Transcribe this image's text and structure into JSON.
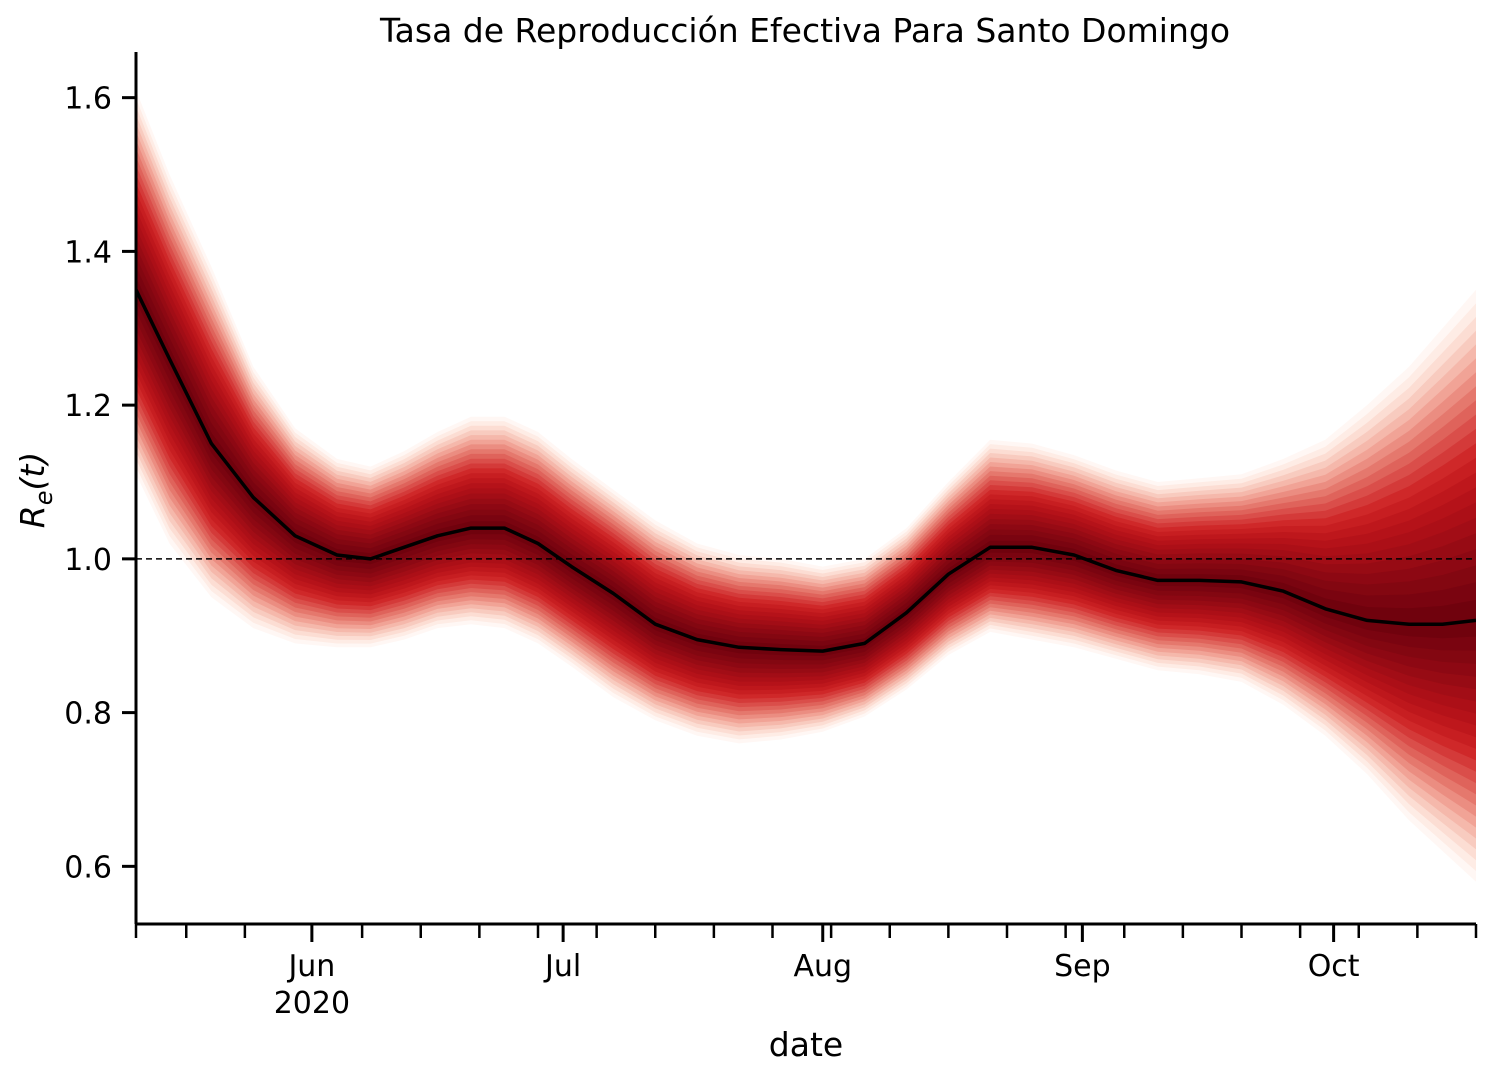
{
  "chart_data": {
    "type": "line",
    "title": "Tasa de Reproducción Efectiva Para Santo Domingo",
    "xlabel": "date",
    "ylabel_base": "R",
    "ylabel_sub": "e",
    "ylabel_arg": "(t)",
    "x_range": [
      "2020-05-11",
      "2020-10-18"
    ],
    "ylim": [
      0.525,
      1.675
    ],
    "yticks": [
      {
        "value": 0.6,
        "label": "0.6"
      },
      {
        "value": 0.8,
        "label": "0.8"
      },
      {
        "value": 1.0,
        "label": "1.0"
      },
      {
        "value": 1.2,
        "label": "1.2"
      },
      {
        "value": 1.4,
        "label": "1.4"
      },
      {
        "value": 1.6,
        "label": "1.6"
      }
    ],
    "xticks_major": [
      {
        "date": "2020-06-01",
        "label": "Jun",
        "sublabel": "2020"
      },
      {
        "date": "2020-07-01",
        "label": "Jul",
        "sublabel": ""
      },
      {
        "date": "2020-08-01",
        "label": "Aug",
        "sublabel": ""
      },
      {
        "date": "2020-09-01",
        "label": "Sep",
        "sublabel": ""
      },
      {
        "date": "2020-10-01",
        "label": "Oct",
        "sublabel": ""
      }
    ],
    "xticks_minor": [
      "2020-05-11",
      "2020-05-17",
      "2020-05-24",
      "2020-06-07",
      "2020-06-14",
      "2020-06-21",
      "2020-06-28",
      "2020-07-05",
      "2020-07-12",
      "2020-07-19",
      "2020-07-26",
      "2020-08-02",
      "2020-08-09",
      "2020-08-16",
      "2020-08-23",
      "2020-08-30",
      "2020-09-06",
      "2020-09-13",
      "2020-09-20",
      "2020-09-27",
      "2020-10-04",
      "2020-10-11",
      "2020-10-18"
    ],
    "reference_line": {
      "y": 1.0,
      "style": "dashed"
    },
    "series": [
      {
        "x": [
          "2020-05-11",
          "2020-05-15",
          "2020-05-20",
          "2020-05-25",
          "2020-05-30",
          "2020-06-04",
          "2020-06-08",
          "2020-06-12",
          "2020-06-16",
          "2020-06-20",
          "2020-06-24",
          "2020-06-28",
          "2020-07-02",
          "2020-07-07",
          "2020-07-12",
          "2020-07-17",
          "2020-07-22",
          "2020-07-27",
          "2020-08-01",
          "2020-08-06",
          "2020-08-11",
          "2020-08-16",
          "2020-08-21",
          "2020-08-26",
          "2020-08-31",
          "2020-09-05",
          "2020-09-10",
          "2020-09-15",
          "2020-09-20",
          "2020-09-25",
          "2020-09-30",
          "2020-10-05",
          "2020-10-10",
          "2020-10-14",
          "2020-10-18"
        ],
        "median": [
          1.35,
          1.26,
          1.15,
          1.08,
          1.03,
          1.005,
          1.0,
          1.015,
          1.03,
          1.04,
          1.04,
          1.02,
          0.99,
          0.955,
          0.915,
          0.895,
          0.885,
          0.882,
          0.88,
          0.89,
          0.93,
          0.98,
          1.015,
          1.015,
          1.005,
          0.985,
          0.972,
          0.972,
          0.97,
          0.958,
          0.935,
          0.92,
          0.915,
          0.915,
          0.92
        ],
        "band_lower": [
          1.11,
          1.02,
          0.95,
          0.91,
          0.89,
          0.885,
          0.885,
          0.895,
          0.91,
          0.915,
          0.91,
          0.89,
          0.86,
          0.82,
          0.79,
          0.77,
          0.76,
          0.765,
          0.775,
          0.795,
          0.83,
          0.875,
          0.905,
          0.895,
          0.885,
          0.87,
          0.855,
          0.85,
          0.84,
          0.81,
          0.77,
          0.72,
          0.66,
          0.62,
          0.58
        ],
        "band_upper": [
          1.61,
          1.5,
          1.38,
          1.25,
          1.17,
          1.13,
          1.12,
          1.14,
          1.165,
          1.185,
          1.185,
          1.165,
          1.13,
          1.09,
          1.05,
          1.02,
          1.005,
          1.0,
          0.99,
          1.0,
          1.04,
          1.1,
          1.155,
          1.15,
          1.135,
          1.115,
          1.1,
          1.105,
          1.11,
          1.13,
          1.155,
          1.2,
          1.25,
          1.3,
          1.35
        ]
      }
    ],
    "colors": {
      "median_line": "#000000",
      "band_core": "#67000d",
      "band_mid": "#cb181d",
      "band_outer": "#fcbba1"
    }
  }
}
